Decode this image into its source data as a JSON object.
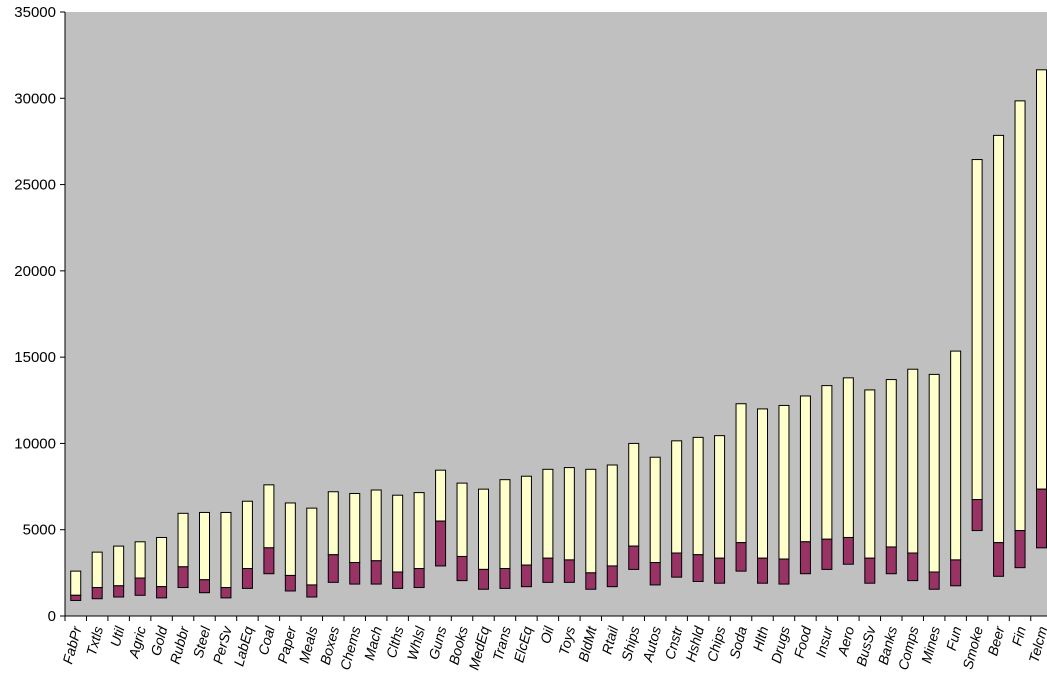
{
  "chart_data": {
    "type": "bar",
    "subtype": "floating-stacked-range",
    "title": "",
    "xlabel": "",
    "ylabel": "",
    "ylim": [
      0,
      35000
    ],
    "yticks": [
      0,
      5000,
      10000,
      15000,
      20000,
      25000,
      30000,
      35000
    ],
    "grid": false,
    "legend": "none",
    "colors": {
      "plot_bg": "#c0c0c0",
      "lower": "#993366",
      "upper": "#ffffcc",
      "edge": "#000000"
    },
    "categories": [
      "FabPr",
      "Txtls",
      "Util",
      "Agric",
      "Gold",
      "Rubbr",
      "Steel",
      "PerSv",
      "LabEq",
      "Coal",
      "Paper",
      "Meals",
      "Boxes",
      "Chems",
      "Mach",
      "Clths",
      "Whlsl",
      "Guns",
      "Books",
      "MedEq",
      "Trans",
      "ElcEq",
      "Oil",
      "Toys",
      "BldMt",
      "Rtail",
      "Ships",
      "Autos",
      "Cnstr",
      "Hshld",
      "Chips",
      "Soda",
      "Hlth",
      "Drugs",
      "Food",
      "Insur",
      "Aero",
      "BusSv",
      "Banks",
      "Comps",
      "Mines",
      "Fun",
      "Smoke",
      "Beer",
      "Fin",
      "Telcm"
    ],
    "series": [
      {
        "values": [
          900,
          1000,
          1100,
          1200,
          1050,
          1650,
          1350,
          1050,
          1600,
          2450,
          1450,
          1100,
          1950,
          1850,
          1850,
          1600,
          1650,
          2900,
          2050,
          1550,
          1600,
          1700,
          1950,
          1950,
          1550,
          1700,
          2700,
          1800,
          2250,
          2000,
          1900,
          2600,
          1900,
          1850,
          2450,
          2700,
          3000,
          1900,
          2450,
          2050,
          1550,
          1750,
          4950,
          2300,
          2800,
          3950
        ]
      },
      {
        "values": [
          1200,
          1650,
          1750,
          2200,
          1700,
          2850,
          2100,
          1650,
          2750,
          3950,
          2350,
          1800,
          3550,
          3100,
          3200,
          2550,
          2750,
          5500,
          3450,
          2700,
          2750,
          2950,
          3350,
          3250,
          2500,
          2900,
          4050,
          3100,
          3650,
          3550,
          3350,
          4250,
          3350,
          3300,
          4300,
          4450,
          4550,
          3350,
          4000,
          3650,
          2550,
          3250,
          6750,
          4250,
          4950,
          7350
        ]
      },
      {
        "values": [
          2600,
          3700,
          4050,
          4300,
          4550,
          5950,
          6000,
          6000,
          6650,
          7600,
          6550,
          6250,
          7200,
          7100,
          7300,
          7000,
          7150,
          8450,
          7700,
          7350,
          7900,
          8100,
          8500,
          8600,
          8500,
          8750,
          10000,
          9200,
          10150,
          10350,
          10450,
          12300,
          12000,
          12200,
          12750,
          13350,
          13800,
          13100,
          13700,
          14300,
          14000,
          15350,
          26450,
          27850,
          29850,
          31650
        ]
      }
    ]
  }
}
